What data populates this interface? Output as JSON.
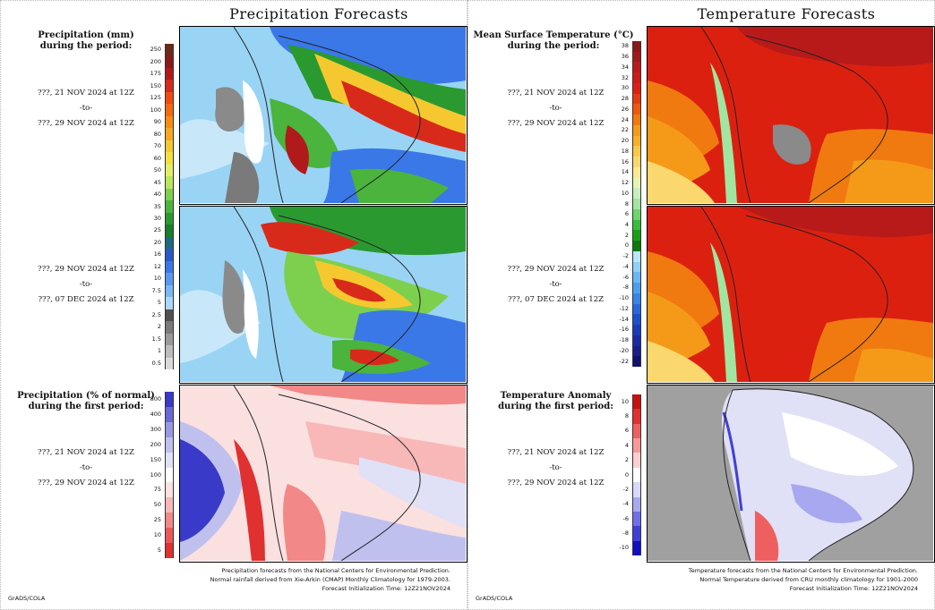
{
  "precip": {
    "title": "Precipitation Forecasts",
    "period1": {
      "label1": "Precipitation (mm)",
      "label2": "during the period:",
      "from": "???, 21 NOV 2024 at 12Z",
      "to": "-to-",
      "until": "???, 29 NOV 2024 at 12Z"
    },
    "period2": {
      "from": "???, 29 NOV 2024 at 12Z",
      "to": "-to-",
      "until": "???, 07 DEC 2024 at 12Z"
    },
    "anomaly": {
      "label1": "Precipitation (% of normal)",
      "label2": "during the first period:",
      "from": "???, 21 NOV 2024 at 12Z",
      "to": "-to-",
      "until": "???, 29 NOV 2024 at 12Z"
    },
    "ticks_mm": [
      "250",
      "200",
      "175",
      "150",
      "125",
      "100",
      "90",
      "80",
      "70",
      "60",
      "50",
      "45",
      "40",
      "35",
      "30",
      "25",
      "20",
      "16",
      "12",
      "10",
      "7.5",
      "5",
      "2.5",
      "2",
      "1.5",
      "1",
      "0.5"
    ],
    "colors_mm": [
      "#6b2a1a",
      "#8b1a1a",
      "#b01a1a",
      "#d82a1a",
      "#f04a10",
      "#f46a10",
      "#f58c10",
      "#f6a820",
      "#f6c830",
      "#f3e040",
      "#e2ef66",
      "#b8e75a",
      "#7cd04e",
      "#4ab43c",
      "#2a9a30",
      "#1a7e2a",
      "#1a6a80",
      "#2a58c8",
      "#3a78e8",
      "#5a98f0",
      "#7ab8f5",
      "#a8d8fa",
      "#505050",
      "#7a7a7a",
      "#9a9a9a",
      "#bcbcbc",
      "#dadada"
    ],
    "ticks_pct": [
      "800",
      "400",
      "300",
      "200",
      "150",
      "100",
      "75",
      "50",
      "25",
      "10",
      "5"
    ],
    "colors_pct": [
      "#3a3ac8",
      "#6868d8",
      "#9898e4",
      "#c0c0ee",
      "#e0e0f6",
      "#ffffff",
      "#fde0e0",
      "#f8b8b8",
      "#f28888",
      "#ea5858",
      "#e03030"
    ],
    "footer": [
      "Precipitation forecasts from the National Centers for Environmental Prediction.",
      "Normal rainfall derived from Xie-Arkin (CMAP) Monthly Climatology for 1979-2003.",
      "Forecast Initialization Time: 12Z21NOV2024"
    ],
    "credit": "GrADS/COLA"
  },
  "temp": {
    "title": "Temperature Forecasts",
    "period1": {
      "label1": "Mean Surface Temperature (°C)",
      "label2": "during the period:",
      "from": "???, 21 NOV 2024 at 12Z",
      "to": "-to-",
      "until": "???, 29 NOV 2024 at 12Z"
    },
    "period2": {
      "from": "???, 29 NOV 2024 at 12Z",
      "to": "-to-",
      "until": "???, 07 DEC 2024 at 12Z"
    },
    "anomaly": {
      "label1": "Temperature Anomaly",
      "label2": "during the first period:",
      "from": "???, 21 NOV 2024 at 12Z",
      "to": "-to-",
      "until": "???, 29 NOV 2024 at 12Z"
    },
    "ticks_c": [
      "38",
      "36",
      "34",
      "32",
      "30",
      "28",
      "26",
      "24",
      "22",
      "20",
      "18",
      "16",
      "14",
      "12",
      "10",
      "8",
      "6",
      "4",
      "2",
      "0",
      "-2",
      "-4",
      "-6",
      "-8",
      "-10",
      "-12",
      "-14",
      "-16",
      "-18",
      "-20",
      "-22"
    ],
    "colors_c": [
      "#8a1a1a",
      "#a01a1a",
      "#b81a1a",
      "#cc1a1a",
      "#dc2010",
      "#e43a10",
      "#ec5a10",
      "#f07a10",
      "#f49a18",
      "#f6b028",
      "#f8c84a",
      "#fad86e",
      "#fbe890",
      "#e8f4b0",
      "#c8eec0",
      "#a0e6a0",
      "#6ed46e",
      "#3cbc3c",
      "#1a9e1a",
      "#0a7a0a",
      "#b8e6fa",
      "#90d0f6",
      "#68b8f2",
      "#4aa0ec",
      "#3a84e4",
      "#2a68da",
      "#1a50cc",
      "#1a3cb8",
      "#1a2ca0",
      "#1a1e88",
      "#12126e"
    ],
    "ticks_anom": [
      "10",
      "8",
      "6",
      "4",
      "2",
      "0",
      "-2",
      "-4",
      "-6",
      "-8",
      "-10"
    ],
    "colors_anom": [
      "#c81010",
      "#e03030",
      "#ee6060",
      "#f69898",
      "#fcd0d0",
      "#ffffff",
      "#d8d8fa",
      "#a8a8f0",
      "#7070e4",
      "#4040d8",
      "#1010c0"
    ],
    "footer": [
      "Temperature forecasts from the National Centers for Environmental Prediction.",
      "Normal Temperature derived from CRU monthly climatology for 1901-2000",
      "Forecast Initialization Time: 12Z21NOV2024"
    ],
    "credit": "GrADS/COLA"
  }
}
